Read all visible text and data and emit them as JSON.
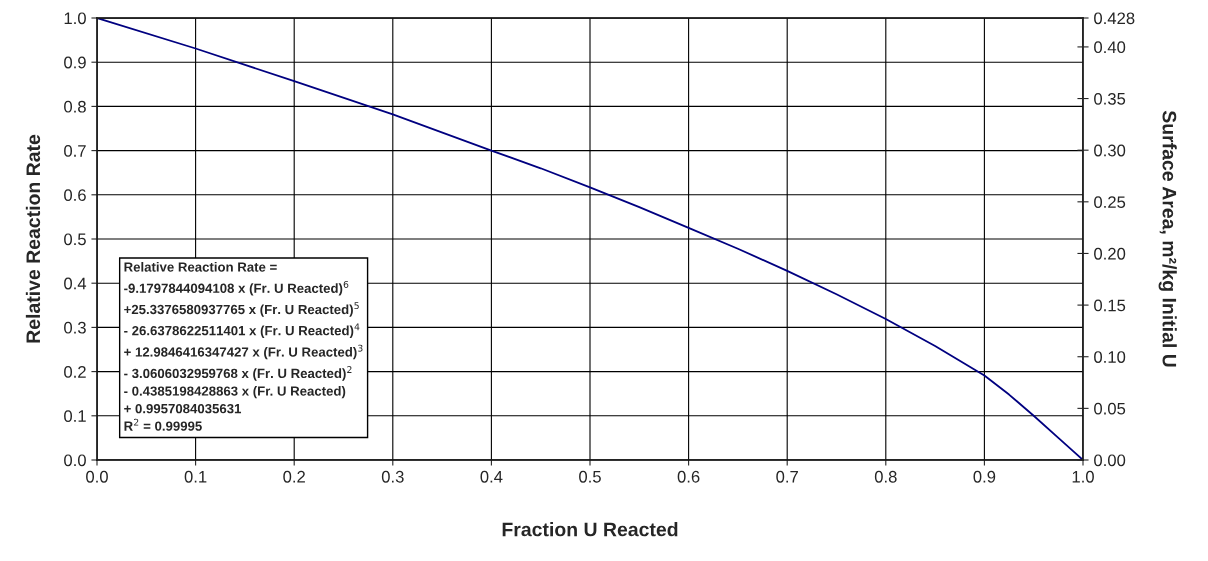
{
  "chart_data": {
    "type": "line",
    "xlabel": "Fraction U Reacted",
    "ylabel": "Relative Reaction Rate",
    "y2label": "Surface Area, m²/kg Initial U",
    "x": [
      0,
      0.1,
      0.2,
      0.3,
      0.4,
      0.45,
      0.5,
      0.55,
      0.6,
      0.65,
      0.7,
      0.75,
      0.8,
      0.85,
      0.9,
      0.925,
      0.95,
      0.975,
      0.99,
      1.0
    ],
    "series": [
      {
        "color": "#000080",
        "values": [
          1.0,
          0.931,
          0.857,
          0.782,
          0.7,
          0.66,
          0.617,
          0.572,
          0.525,
          0.478,
          0.428,
          0.375,
          0.319,
          0.258,
          0.191,
          0.148,
          0.1,
          0.05,
          0.02,
          0.0
        ]
      }
    ],
    "xlim": [
      0,
      1.0
    ],
    "xticks": [
      {
        "value": 0,
        "label": "0.0"
      },
      0.1,
      0.2,
      0.3,
      0.4,
      0.5,
      0.6,
      0.7,
      0.8,
      0.9,
      {
        "value": 1.0,
        "label": "1.0"
      }
    ],
    "ylim": [
      0,
      1.0
    ],
    "yticks": [
      {
        "value": 0,
        "label": "0.0"
      },
      0.1,
      0.2,
      0.3,
      0.4,
      0.5,
      0.6,
      0.7,
      0.8,
      0.9,
      {
        "value": 1.0,
        "label": "1.0"
      }
    ],
    "y2lim": [
      0,
      0.428
    ],
    "y2ticks": [
      {
        "value": 0,
        "label": "0.00"
      },
      0.05,
      {
        "value": 0.1,
        "label": "0.10"
      },
      0.15,
      {
        "value": 0.2,
        "label": "0.20"
      },
      0.25,
      {
        "value": 0.3,
        "label": "0.30"
      },
      0.35,
      {
        "value": 0.4,
        "label": "0.40"
      },
      0.428
    ],
    "grid": true,
    "marker": "none",
    "line_style": "solid",
    "annotations": [
      "Relative Reaction Rate =\n-9.1797844094108 x (Fr. U Reacted)$^{6}$\n+25.3376580937765 x (Fr. U Reacted)$^{5}$\n- 26.6378622511401 x (Fr. U Reacted)$^{4}$\n+ 12.9846416347427 x (Fr. U Reacted)$^{3}$\n- 3.0606032959768 x (Fr. U Reacted)$^{2}$\n- 0.4385198428863 x (Fr. U Reacted)\n+ 0.9957084035631\nR$^{2}$ = 0.99995"
    ]
  }
}
